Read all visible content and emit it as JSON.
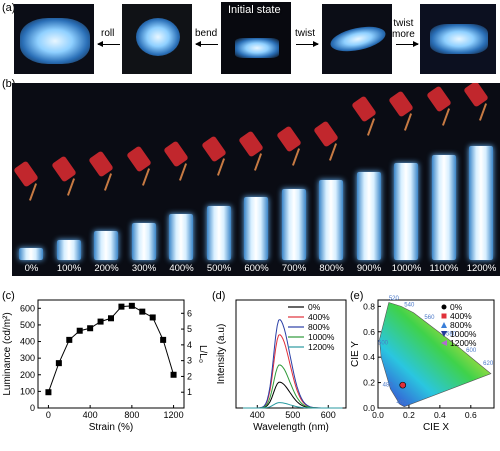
{
  "panel_a": {
    "label": "(a)",
    "center_caption": "Initial state",
    "arrows": [
      "roll",
      "bend",
      "twist",
      "twist\nmore"
    ]
  },
  "panel_b": {
    "label": "(b)",
    "strains": [
      "0%",
      "100%",
      "200%",
      "300%",
      "400%",
      "500%",
      "600%",
      "700%",
      "800%",
      "900%",
      "1000%",
      "1100%",
      "1200%"
    ]
  },
  "panel_c": {
    "label": "(c)"
  },
  "panel_d": {
    "label": "(d)"
  },
  "panel_e": {
    "label": "(e)"
  },
  "chart_data": [
    {
      "type": "scatter",
      "panel": "c",
      "xlabel": "Strain (%)",
      "ylabel": "Luminance (cd/m²)",
      "y2label": "L/L₀",
      "x": [
        0,
        100,
        200,
        300,
        400,
        500,
        600,
        700,
        800,
        900,
        1000,
        1100,
        1200
      ],
      "y": [
        95,
        270,
        410,
        465,
        480,
        520,
        540,
        610,
        615,
        580,
        545,
        410,
        200
      ],
      "xlim": [
        -100,
        1300
      ],
      "ylim": [
        0,
        650
      ],
      "xticks": [
        0,
        400,
        800,
        1200
      ],
      "yticks": [
        0,
        100,
        200,
        300,
        400,
        500,
        600
      ],
      "y2ticks": [
        1,
        2,
        3,
        4,
        5,
        6
      ]
    },
    {
      "type": "line",
      "panel": "d",
      "xlabel": "Wavelength (nm)",
      "ylabel": "Intensity (a.u)",
      "xlim": [
        340,
        650
      ],
      "xticks": [
        400,
        500,
        600
      ],
      "peak_nm": 462,
      "series": [
        {
          "name": "0%",
          "color": "#000000",
          "peak": 0.24
        },
        {
          "name": "400%",
          "color": "#e0303a",
          "peak": 0.68
        },
        {
          "name": "800%",
          "color": "#2a3fa6",
          "peak": 0.82
        },
        {
          "name": "1000%",
          "color": "#2f9a3a",
          "peak": 0.4
        },
        {
          "name": "1200%",
          "color": "#2a9aa0",
          "peak": 0.05
        }
      ]
    },
    {
      "type": "scatter",
      "panel": "e",
      "xlabel": "CIE X",
      "ylabel": "CIE Y",
      "xlim": [
        0,
        0.75
      ],
      "ylim": [
        0,
        0.85
      ],
      "xticks": [
        0.0,
        0.2,
        0.4,
        0.6
      ],
      "yticks": [
        0.0,
        0.2,
        0.4,
        0.6,
        0.8
      ],
      "locus_labels": [
        "520",
        "540",
        "560",
        "580",
        "600",
        "620",
        "500",
        "480",
        "460"
      ],
      "series": [
        {
          "name": "0%",
          "color": "#000000",
          "marker": "circle",
          "x": 0.16,
          "y": 0.18
        },
        {
          "name": "400%",
          "color": "#e0303a",
          "marker": "square",
          "x": 0.16,
          "y": 0.18
        },
        {
          "name": "800%",
          "color": "#3a7ed8",
          "marker": "triangle-up",
          "x": 0.16,
          "y": 0.18
        },
        {
          "name": "1000%",
          "color": "#243a9a",
          "marker": "triangle-down",
          "x": 0.16,
          "y": 0.18
        },
        {
          "name": "1200%",
          "color": "#b06ad0",
          "marker": "triangle-left",
          "x": 0.16,
          "y": 0.18
        }
      ]
    }
  ]
}
